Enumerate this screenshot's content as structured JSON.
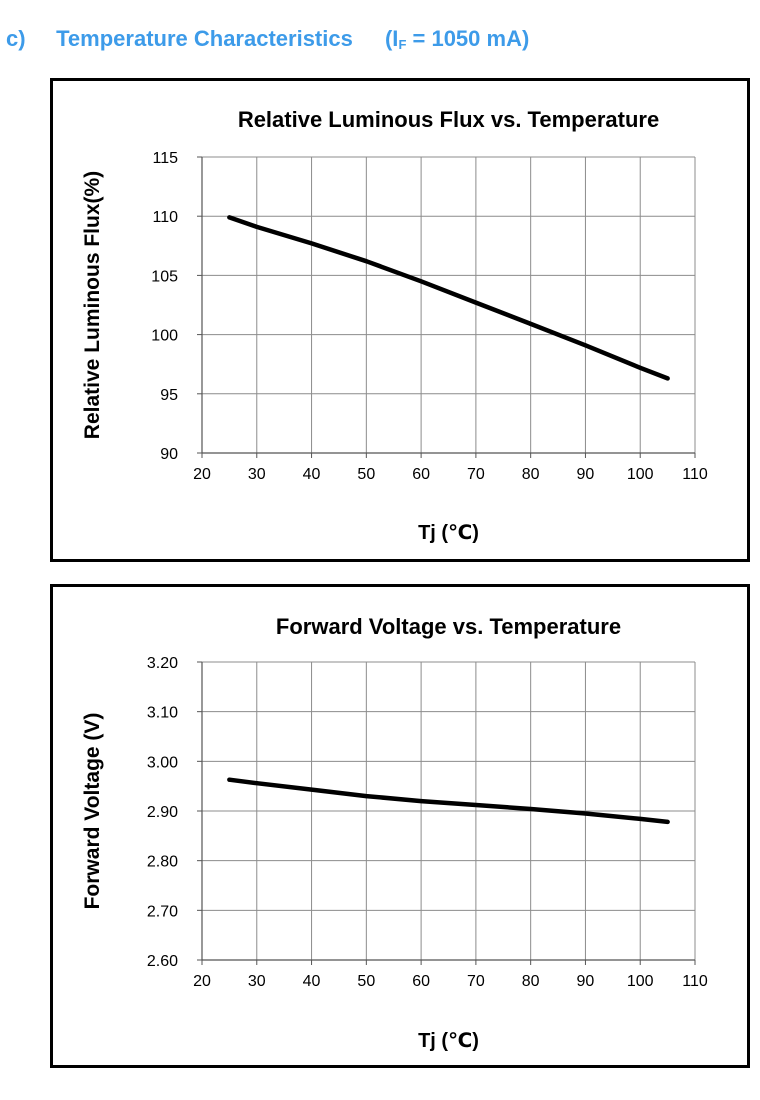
{
  "section": {
    "label": "c)",
    "title": "Temperature Characteristics",
    "cond_prefix": "(I",
    "cond_sub": "F",
    "cond_suffix": " = 1050 mA)"
  },
  "chart_data": [
    {
      "type": "line",
      "title": "Relative Luminous Flux vs. Temperature",
      "xlabel": "Tj (℃)",
      "ylabel": "Relative Luminous Flux(%)",
      "xlim": [
        20,
        110
      ],
      "ylim": [
        90,
        115
      ],
      "xticks": [
        20,
        30,
        40,
        50,
        60,
        70,
        80,
        90,
        100,
        110
      ],
      "xtick_labels": [
        "20",
        "30",
        "40",
        "50",
        "60",
        "70",
        "80",
        "90",
        "100",
        "110"
      ],
      "yticks": [
        90,
        95,
        100,
        105,
        110,
        115
      ],
      "ytick_labels": [
        "90",
        "95",
        "100",
        "105",
        "110",
        "115"
      ],
      "grid": true,
      "series": [
        {
          "name": "Relative Luminous Flux",
          "color": "#000000",
          "x": [
            25,
            30,
            40,
            50,
            60,
            70,
            80,
            90,
            100,
            105
          ],
          "y": [
            109.9,
            109.1,
            107.7,
            106.2,
            104.5,
            102.7,
            100.9,
            99.1,
            97.2,
            96.3
          ]
        }
      ]
    },
    {
      "type": "line",
      "title": "Forward Voltage vs. Temperature",
      "xlabel": "Tj (℃)",
      "ylabel": "Forward Voltage (V)",
      "xlim": [
        20,
        110
      ],
      "ylim": [
        2.6,
        3.2
      ],
      "xticks": [
        20,
        30,
        40,
        50,
        60,
        70,
        80,
        90,
        100,
        110
      ],
      "xtick_labels": [
        "20",
        "30",
        "40",
        "50",
        "60",
        "70",
        "80",
        "90",
        "100",
        "110"
      ],
      "yticks": [
        2.6,
        2.7,
        2.8,
        2.9,
        3.0,
        3.1,
        3.2
      ],
      "ytick_labels": [
        "2.60",
        "2.70",
        "2.80",
        "2.90",
        "3.00",
        "3.10",
        "3.20"
      ],
      "grid": true,
      "series": [
        {
          "name": "Forward Voltage",
          "color": "#000000",
          "x": [
            25,
            30,
            40,
            50,
            60,
            70,
            80,
            90,
            100,
            105
          ],
          "y": [
            2.963,
            2.956,
            2.943,
            2.93,
            2.92,
            2.912,
            2.904,
            2.895,
            2.884,
            2.878
          ]
        }
      ]
    }
  ]
}
